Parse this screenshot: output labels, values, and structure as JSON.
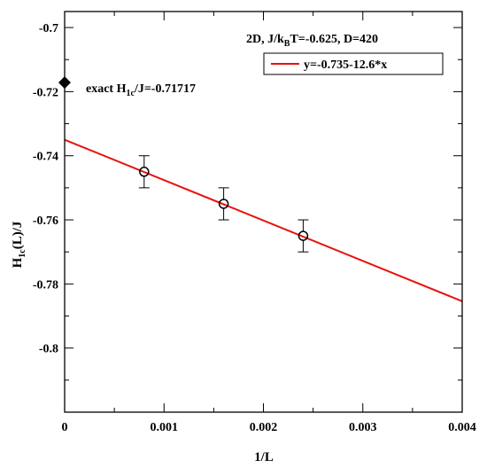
{
  "chart_data": {
    "type": "scatter",
    "title": "",
    "xlabel": "1/L",
    "ylabel_main": "H",
    "ylabel_sub": "1c",
    "ylabel_rest": "(L)/J",
    "xlim": [
      0,
      0.004
    ],
    "ylim": [
      -0.82,
      -0.695
    ],
    "x_ticks": [
      0,
      0.001,
      0.002,
      0.003,
      0.004
    ],
    "x_tick_labels": [
      "0",
      "0.001",
      "0.002",
      "0.003",
      "0.004"
    ],
    "y_ticks": [
      -0.8,
      -0.78,
      -0.76,
      -0.74,
      -0.72,
      -0.7
    ],
    "y_tick_labels": [
      "-0.8",
      "-0.78",
      "-0.76",
      "-0.74",
      "-0.72",
      "-0.7"
    ],
    "grid": false,
    "legend_placement": "top-right",
    "header_prefix": "2D, J/k",
    "header_sub": "B",
    "header_rest": "T=-0.625, D=420",
    "series": [
      {
        "name": "y=-0.735-12.6*x",
        "kind": "line",
        "color": "#e8120c",
        "intercept": -0.735,
        "slope": -12.6,
        "x_range": [
          0,
          0.004
        ]
      },
      {
        "kind": "errorbar",
        "color": "#000000",
        "x": [
          0.0008,
          0.0016,
          0.0024
        ],
        "y": [
          -0.745,
          -0.755,
          -0.765
        ],
        "err": [
          0.005,
          0.005,
          0.005
        ]
      }
    ],
    "exact_point": {
      "x": 0,
      "y": -0.71717,
      "label_main": "exact H",
      "label_sub": "1c",
      "label_rest": "/J=-0.71717"
    }
  }
}
